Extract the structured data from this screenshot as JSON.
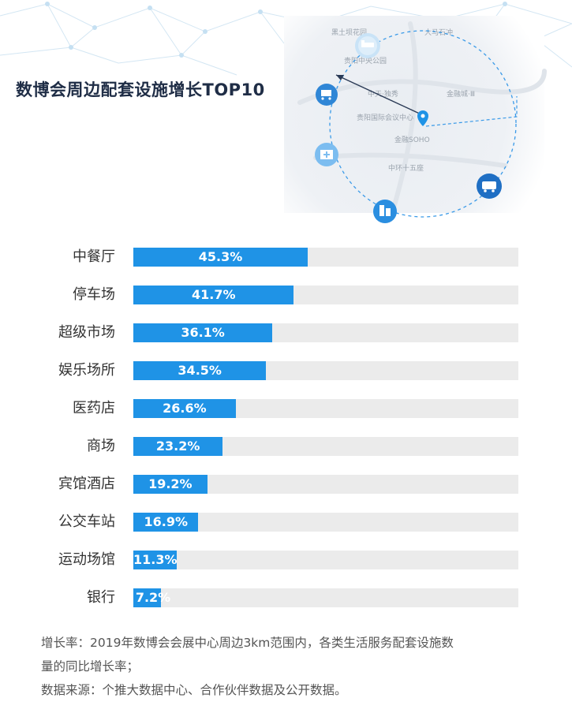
{
  "title": "数博会周边配套设施增长TOP10",
  "map": {
    "labels": [
      "黑土坝花园",
      "大马石冲",
      "贵阳中央公园",
      "中天·独秀",
      "金融城·Ⅲ",
      "贵阳国际会议中心",
      "金融SOHO",
      "中环十五座"
    ],
    "icons": [
      "hotel-icon",
      "shopping-cart-icon",
      "hospital-icon",
      "bus-icon",
      "buildings-icon",
      "location-pin-icon"
    ]
  },
  "chart_data": {
    "type": "bar",
    "orientation": "horizontal",
    "categories": [
      "中餐厅",
      "停车场",
      "超级市场",
      "娱乐场所",
      "医药店",
      "商场",
      "宾馆酒店",
      "公交车站",
      "运动场馆",
      "银行"
    ],
    "values": [
      45.3,
      41.7,
      36.1,
      34.5,
      26.6,
      23.2,
      19.2,
      16.9,
      11.3,
      7.2
    ],
    "value_labels": [
      "45.3%",
      "41.7%",
      "36.1%",
      "34.5%",
      "26.6%",
      "23.2%",
      "19.2%",
      "16.9%",
      "11.3%",
      "7.2%"
    ],
    "xlim": [
      0,
      100
    ],
    "unit": "%",
    "grid": false,
    "legend": "none",
    "colors": {
      "bar": "#1f93e6",
      "track": "#ebebeb"
    }
  },
  "notes": [
    "增长率：2019年数博会会展中心周边3km范围内，各类生活服务配套设施数",
    "量的同比增长率；",
    "数据来源：个推大数据中心、合作伙伴数据及公开数据。"
  ]
}
